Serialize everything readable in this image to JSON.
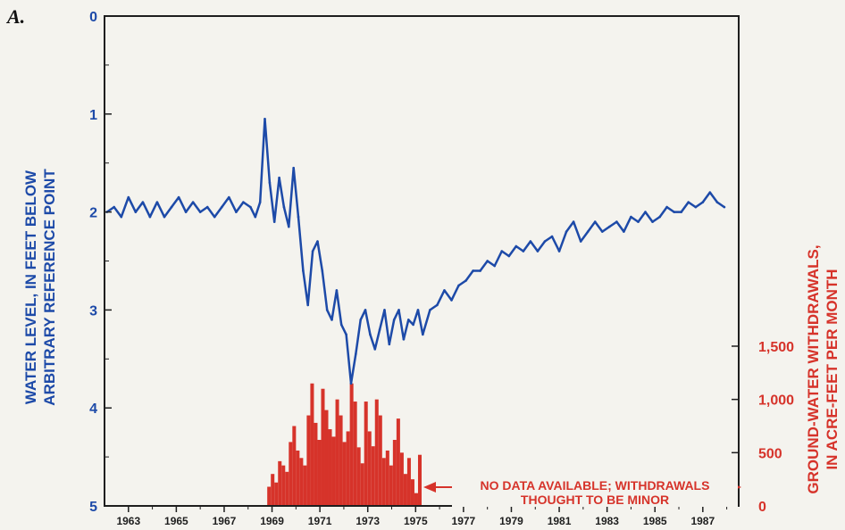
{
  "panel_label": "A.",
  "note_lines": [
    "NO DATA AVAILABLE; WITHDRAWALS",
    "THOUGHT TO BE MINOR"
  ],
  "chart_data": {
    "type": "line",
    "xlabel": "",
    "x_ticks": [
      "1963",
      "1965",
      "1967",
      "1969",
      "1971",
      "1973",
      "1975",
      "1977",
      "1979",
      "1981",
      "1983",
      "1985",
      "1987"
    ],
    "xlim": [
      1962,
      1988.5
    ],
    "left_axis": {
      "label_lines": [
        "WATER LEVEL, IN FEET BELOW",
        "ARBITRARY REFERENCE POINT"
      ],
      "ticks": [
        "0",
        "1",
        "2",
        "3",
        "4",
        "5"
      ],
      "range": [
        0,
        5
      ],
      "inverted": true,
      "color": "#1d4aa8"
    },
    "right_axis": {
      "label_lines": [
        "GROUND-WATER WITHDRAWALS,",
        "IN ACRE-FEET PER MONTH"
      ],
      "ticks": [
        "0",
        "500",
        "1,000",
        "1,500"
      ],
      "tick_values": [
        0,
        500,
        1000,
        1500
      ],
      "range": [
        0,
        4600
      ],
      "color": "#d6332a"
    },
    "series": [
      {
        "axis": "left",
        "color": "#1d4aa8",
        "x": [
          1962.1,
          1962.4,
          1962.7,
          1963.0,
          1963.3,
          1963.6,
          1963.9,
          1964.2,
          1964.5,
          1964.8,
          1965.1,
          1965.4,
          1965.7,
          1966.0,
          1966.3,
          1966.6,
          1966.9,
          1967.2,
          1967.5,
          1967.8,
          1968.1,
          1968.3,
          1968.5,
          1968.7,
          1968.9,
          1969.1,
          1969.3,
          1969.5,
          1969.7,
          1969.9,
          1970.1,
          1970.3,
          1970.5,
          1970.7,
          1970.9,
          1971.1,
          1971.3,
          1971.5,
          1971.7,
          1971.9,
          1972.1,
          1972.3,
          1972.5,
          1972.7,
          1972.9,
          1973.1,
          1973.3,
          1973.5,
          1973.7,
          1973.9,
          1974.1,
          1974.3,
          1974.5,
          1974.7,
          1974.9,
          1975.1,
          1975.3,
          1975.6,
          1975.9,
          1976.2,
          1976.5,
          1976.8,
          1977.1,
          1977.4,
          1977.7,
          1978.0,
          1978.3,
          1978.6,
          1978.9,
          1979.2,
          1979.5,
          1979.8,
          1980.1,
          1980.4,
          1980.7,
          1981.0,
          1981.3,
          1981.6,
          1981.9,
          1982.2,
          1982.5,
          1982.8,
          1983.1,
          1983.4,
          1983.7,
          1984.0,
          1984.3,
          1984.6,
          1984.9,
          1985.2,
          1985.5,
          1985.8,
          1986.1,
          1986.4,
          1986.7,
          1987.0,
          1987.3,
          1987.6,
          1987.9
        ],
        "y": [
          2.0,
          1.95,
          2.05,
          1.85,
          2.0,
          1.9,
          2.05,
          1.9,
          2.05,
          1.95,
          1.85,
          2.0,
          1.9,
          2.0,
          1.95,
          2.05,
          1.95,
          1.85,
          2.0,
          1.9,
          1.95,
          2.05,
          1.9,
          1.05,
          1.7,
          2.1,
          1.65,
          1.95,
          2.15,
          1.55,
          2.05,
          2.6,
          2.95,
          2.4,
          2.3,
          2.6,
          3.0,
          3.1,
          2.8,
          3.15,
          3.25,
          3.75,
          3.45,
          3.1,
          3.0,
          3.25,
          3.4,
          3.2,
          3.0,
          3.35,
          3.1,
          3.0,
          3.3,
          3.1,
          3.15,
          3.0,
          3.25,
          3.0,
          2.95,
          2.8,
          2.9,
          2.75,
          2.7,
          2.6,
          2.6,
          2.5,
          2.55,
          2.4,
          2.45,
          2.35,
          2.4,
          2.3,
          2.4,
          2.3,
          2.25,
          2.4,
          2.2,
          2.1,
          2.3,
          2.2,
          2.1,
          2.2,
          2.15,
          2.1,
          2.2,
          2.05,
          2.1,
          2.0,
          2.1,
          2.05,
          1.95,
          2.0,
          2.0,
          1.9,
          1.95,
          1.9,
          1.8,
          1.9,
          1.95
        ]
      },
      {
        "axis": "right",
        "color": "#d6332a",
        "type": "bar",
        "x": [
          1968.8,
          1968.95,
          1969.1,
          1969.25,
          1969.4,
          1969.55,
          1969.7,
          1969.85,
          1970.0,
          1970.15,
          1970.3,
          1970.45,
          1970.6,
          1970.75,
          1970.9,
          1971.05,
          1971.2,
          1971.35,
          1971.5,
          1971.65,
          1971.8,
          1971.95,
          1972.1,
          1972.25,
          1972.4,
          1972.55,
          1972.7,
          1972.85,
          1973.0,
          1973.15,
          1973.3,
          1973.45,
          1973.6,
          1973.75,
          1973.9,
          1974.05,
          1974.2,
          1974.35,
          1974.5,
          1974.65,
          1974.8,
          1974.95,
          1975.1
        ],
        "values": [
          180,
          300,
          220,
          420,
          380,
          320,
          600,
          750,
          520,
          450,
          380,
          850,
          1150,
          780,
          620,
          1100,
          900,
          720,
          650,
          1000,
          850,
          600,
          700,
          1150,
          980,
          550,
          400,
          980,
          700,
          560,
          1000,
          850,
          450,
          520,
          380,
          620,
          820,
          500,
          300,
          450,
          250,
          120,
          480
        ]
      }
    ]
  }
}
